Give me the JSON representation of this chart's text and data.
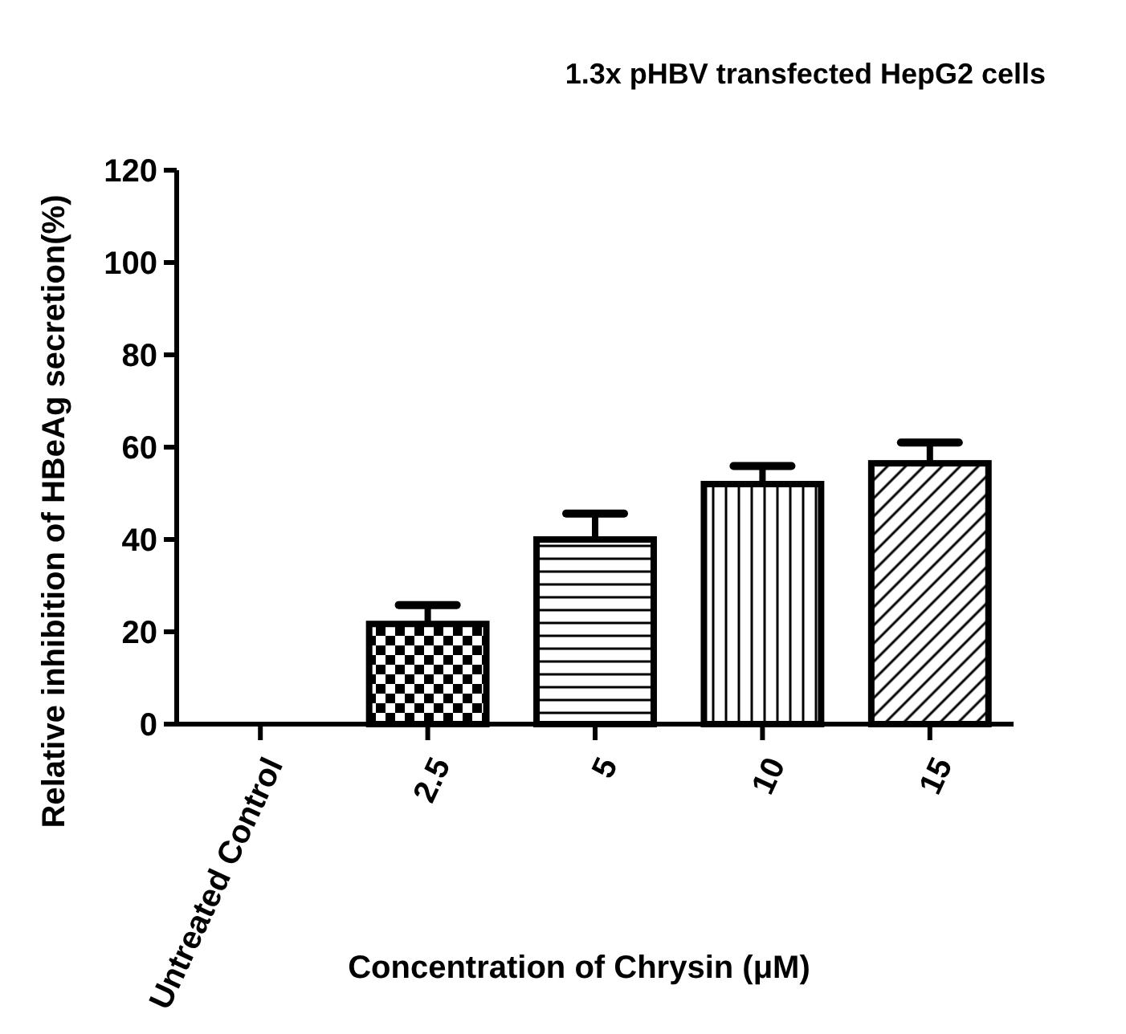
{
  "chart_data": {
    "type": "bar",
    "title": "1.3x pHBV transfected HepG2 cells",
    "xlabel": "Concentration of Chrysin (μM)",
    "ylabel": "Relative inhibition of HBeAg secretion(%)",
    "categories": [
      "Untreated Control",
      "2.5",
      "5",
      "10",
      "15"
    ],
    "values": [
      0,
      21.7,
      40,
      52,
      56.5
    ],
    "errors": [
      null,
      [
        21.7,
        25.8
      ],
      [
        40,
        45.6
      ],
      [
        52,
        55.9
      ],
      [
        56.5,
        61
      ]
    ],
    "color": "#000000",
    "ylim": [
      0,
      120
    ],
    "yticks": [
      0,
      20,
      40,
      60,
      80,
      100,
      120
    ],
    "grid": false
  }
}
